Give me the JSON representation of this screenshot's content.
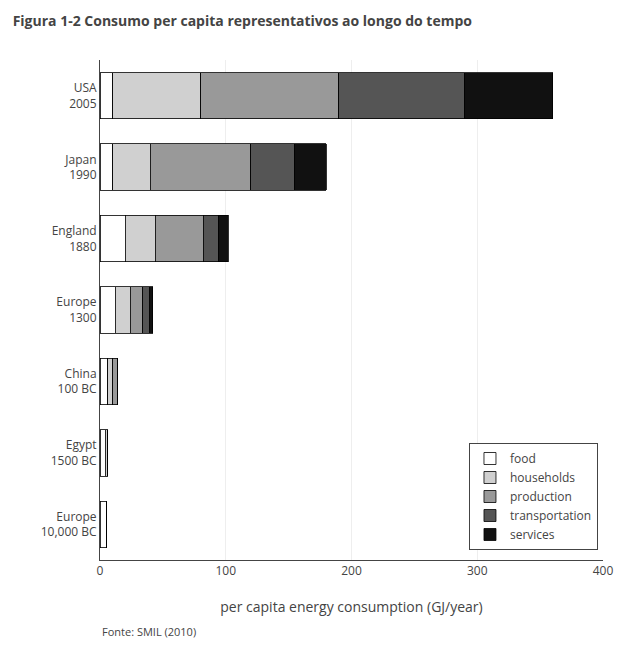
{
  "chart_data": {
    "type": "bar",
    "title": "Figura 1-2 Consumo per capita representativos ao longo do tempo",
    "orientation": "horizontal",
    "stacked": true,
    "categories": [
      "Europe\n10,000 BC",
      "Egypt\n1500 BC",
      "China\n100 BC",
      "Europe\n1300",
      "England\n1880",
      "Japan\n1990",
      "USA\n2005"
    ],
    "series": [
      {
        "name": "food",
        "color": "#ffffff",
        "values": [
          5,
          4,
          6,
          12,
          20,
          10,
          10
        ]
      },
      {
        "name": "households",
        "color": "#d0d0d0",
        "values": [
          0,
          2,
          4,
          12,
          24,
          30,
          70
        ]
      },
      {
        "name": "production",
        "color": "#999999",
        "values": [
          0,
          0,
          4,
          10,
          38,
          80,
          110
        ]
      },
      {
        "name": "transportation",
        "color": "#555555",
        "values": [
          0,
          0,
          0,
          5,
          12,
          35,
          100
        ]
      },
      {
        "name": "services",
        "color": "#111111",
        "values": [
          0,
          0,
          0,
          3,
          8,
          25,
          70
        ]
      }
    ],
    "xlabel": "per capita energy consumption (GJ/year)",
    "xlim": [
      0,
      400
    ],
    "xticks": [
      0,
      100,
      200,
      300,
      400
    ],
    "grid": true,
    "legend": "lower right",
    "annotations": [
      "Fonte: SMIL (2010)"
    ]
  }
}
